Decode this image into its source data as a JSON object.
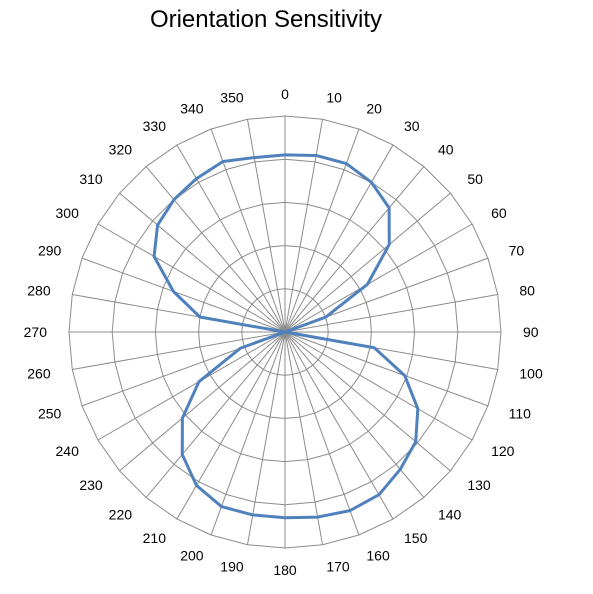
{
  "chart_data": {
    "type": "radar",
    "title": "Orientation Sensitivity",
    "angles": [
      0,
      10,
      20,
      30,
      40,
      50,
      60,
      70,
      80,
      90,
      100,
      110,
      120,
      130,
      140,
      150,
      160,
      170,
      180,
      190,
      200,
      210,
      220,
      230,
      240,
      250,
      260,
      270,
      280,
      290,
      300,
      310,
      320,
      330,
      340,
      350
    ],
    "angle_labels": [
      "0",
      "10",
      "20",
      "30",
      "40",
      "50",
      "60",
      "70",
      "80",
      "90",
      "100",
      "110",
      "120",
      "130",
      "140",
      "150",
      "160",
      "170",
      "180",
      "190",
      "200",
      "210",
      "220",
      "230",
      "240",
      "250",
      "260",
      "270",
      "280",
      "290",
      "300",
      "310",
      "320",
      "330",
      "340",
      "350"
    ],
    "rings": 5,
    "rlim": [
      0,
      1
    ],
    "grid": true,
    "series": [
      {
        "color": "#4f81bd",
        "points": [
          {
            "angle": 0,
            "r": 0.82
          },
          {
            "angle": 10,
            "r": 0.83
          },
          {
            "angle": 20,
            "r": 0.83
          },
          {
            "angle": 30,
            "r": 0.8
          },
          {
            "angle": 40,
            "r": 0.75
          },
          {
            "angle": 50,
            "r": 0.63
          },
          {
            "angle": 60,
            "r": 0.44
          },
          {
            "angle": 70,
            "r": 0.2
          },
          {
            "angle": 80,
            "r": 0.0
          },
          {
            "angle": 90,
            "r": 0.0
          },
          {
            "angle": 100,
            "r": 0.42
          },
          {
            "angle": 110,
            "r": 0.59
          },
          {
            "angle": 120,
            "r": 0.71
          },
          {
            "angle": 130,
            "r": 0.79
          },
          {
            "angle": 140,
            "r": 0.83
          },
          {
            "angle": 150,
            "r": 0.87
          },
          {
            "angle": 160,
            "r": 0.88
          },
          {
            "angle": 170,
            "r": 0.87
          },
          {
            "angle": 180,
            "r": 0.86
          },
          {
            "angle": 190,
            "r": 0.86
          },
          {
            "angle": 200,
            "r": 0.86
          },
          {
            "angle": 210,
            "r": 0.82
          },
          {
            "angle": 220,
            "r": 0.74
          },
          {
            "angle": 230,
            "r": 0.62
          },
          {
            "angle": 240,
            "r": 0.46
          },
          {
            "angle": 250,
            "r": 0.22
          },
          {
            "angle": 260,
            "r": 0.0
          },
          {
            "angle": 270,
            "r": 0.0
          },
          {
            "angle": 280,
            "r": 0.4
          },
          {
            "angle": 290,
            "r": 0.55
          },
          {
            "angle": 300,
            "r": 0.7
          },
          {
            "angle": 310,
            "r": 0.77
          },
          {
            "angle": 320,
            "r": 0.8
          },
          {
            "angle": 330,
            "r": 0.82
          },
          {
            "angle": 340,
            "r": 0.84
          },
          {
            "angle": 350,
            "r": 0.82
          }
        ],
        "segments": [
          [
            80,
            70,
            60,
            50,
            40,
            30,
            20,
            10,
            0,
            350,
            340,
            330,
            320,
            310,
            300,
            290,
            280,
            270,
            260,
            250,
            240,
            230,
            220,
            210,
            200,
            190,
            180,
            170,
            160,
            150,
            140,
            130,
            120,
            110,
            100,
            90
          ]
        ]
      }
    ]
  }
}
